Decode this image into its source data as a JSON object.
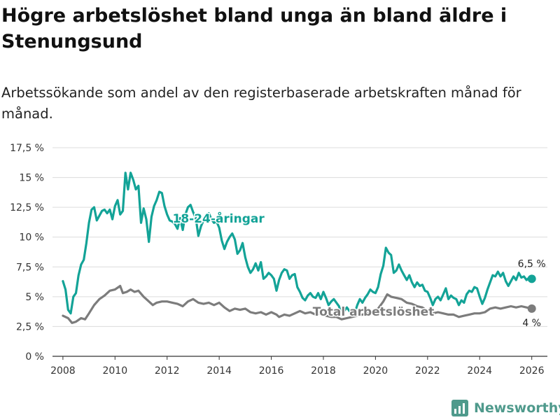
{
  "title": "Högre arbetslöshet bland unga än bland äldre i Stenungsund",
  "subtitle": "Arbetssökande som andel av den registerbaserade arbetskraften månad för månad.",
  "brand": {
    "name": "Newsworthy",
    "color": "#4f9a8c",
    "icon": "bar-chart-icon"
  },
  "chart_data": {
    "type": "line",
    "title": "Högre arbetslöshet bland unga än bland äldre i Stenungsund",
    "xlabel": "",
    "ylabel": "",
    "xlim": [
      2007.6,
      2026.6
    ],
    "ylim": [
      0,
      17.5
    ],
    "grid": true,
    "x_ticks": [
      2008,
      2010,
      2012,
      2014,
      2016,
      2018,
      2020,
      2022,
      2024,
      2026
    ],
    "x_tick_labels": [
      "2008",
      "2010",
      "2012",
      "2014",
      "2016",
      "2018",
      "2020",
      "2022",
      "2024",
      "2026"
    ],
    "y_ticks": [
      0,
      2.5,
      5,
      7.5,
      10,
      12.5,
      15,
      17.5
    ],
    "y_tick_labels": [
      "0 %",
      "2,5 %",
      "5 %",
      "7,5 %",
      "10 %",
      "12,5 %",
      "15 %",
      "17,5 %"
    ],
    "series": [
      {
        "name": "18-24-åringar",
        "color": "#13a397",
        "end_label": "6,5 %",
        "end_value": 6.5,
        "points": [
          [
            2008.0,
            6.3
          ],
          [
            2008.1,
            5.6
          ],
          [
            2008.2,
            3.9
          ],
          [
            2008.3,
            3.6
          ],
          [
            2008.4,
            5.0
          ],
          [
            2008.5,
            5.3
          ],
          [
            2008.6,
            6.8
          ],
          [
            2008.7,
            7.7
          ],
          [
            2008.8,
            8.1
          ],
          [
            2008.9,
            9.5
          ],
          [
            2009.0,
            11.2
          ],
          [
            2009.1,
            12.3
          ],
          [
            2009.2,
            12.5
          ],
          [
            2009.3,
            11.4
          ],
          [
            2009.4,
            11.8
          ],
          [
            2009.5,
            12.2
          ],
          [
            2009.6,
            12.3
          ],
          [
            2009.7,
            12.0
          ],
          [
            2009.8,
            12.3
          ],
          [
            2009.9,
            11.5
          ],
          [
            2010.0,
            12.6
          ],
          [
            2010.1,
            13.1
          ],
          [
            2010.2,
            11.9
          ],
          [
            2010.3,
            12.2
          ],
          [
            2010.4,
            15.4
          ],
          [
            2010.5,
            14.0
          ],
          [
            2010.6,
            15.4
          ],
          [
            2010.7,
            14.8
          ],
          [
            2010.8,
            14.0
          ],
          [
            2010.9,
            14.3
          ],
          [
            2011.0,
            11.2
          ],
          [
            2011.1,
            12.4
          ],
          [
            2011.2,
            11.5
          ],
          [
            2011.3,
            9.6
          ],
          [
            2011.4,
            11.7
          ],
          [
            2011.5,
            12.6
          ],
          [
            2011.6,
            13.1
          ],
          [
            2011.7,
            13.8
          ],
          [
            2011.8,
            13.7
          ],
          [
            2011.9,
            12.6
          ],
          [
            2012.0,
            11.9
          ],
          [
            2012.1,
            11.4
          ],
          [
            2012.2,
            11.3
          ],
          [
            2012.3,
            11.1
          ],
          [
            2012.4,
            10.7
          ],
          [
            2012.5,
            11.6
          ],
          [
            2012.6,
            10.6
          ],
          [
            2012.7,
            11.9
          ],
          [
            2012.8,
            12.5
          ],
          [
            2012.9,
            12.7
          ],
          [
            2013.0,
            12.1
          ],
          [
            2013.1,
            11.6
          ],
          [
            2013.2,
            10.1
          ],
          [
            2013.3,
            10.9
          ],
          [
            2013.4,
            11.4
          ],
          [
            2013.5,
            11.8
          ],
          [
            2013.6,
            12.0
          ],
          [
            2013.7,
            11.5
          ],
          [
            2013.8,
            11.2
          ],
          [
            2013.9,
            11.3
          ],
          [
            2014.0,
            10.8
          ],
          [
            2014.1,
            9.7
          ],
          [
            2014.2,
            9.0
          ],
          [
            2014.3,
            9.6
          ],
          [
            2014.4,
            10.0
          ],
          [
            2014.5,
            10.3
          ],
          [
            2014.6,
            9.8
          ],
          [
            2014.7,
            8.6
          ],
          [
            2014.8,
            8.9
          ],
          [
            2014.9,
            9.5
          ],
          [
            2015.0,
            8.3
          ],
          [
            2015.1,
            7.5
          ],
          [
            2015.2,
            7.0
          ],
          [
            2015.3,
            7.3
          ],
          [
            2015.4,
            7.8
          ],
          [
            2015.5,
            7.2
          ],
          [
            2015.6,
            7.9
          ],
          [
            2015.7,
            6.5
          ],
          [
            2015.8,
            6.7
          ],
          [
            2015.9,
            7.0
          ],
          [
            2016.0,
            6.8
          ],
          [
            2016.1,
            6.5
          ],
          [
            2016.2,
            5.5
          ],
          [
            2016.3,
            6.4
          ],
          [
            2016.4,
            7.0
          ],
          [
            2016.5,
            7.3
          ],
          [
            2016.6,
            7.2
          ],
          [
            2016.7,
            6.5
          ],
          [
            2016.8,
            6.8
          ],
          [
            2016.9,
            6.9
          ],
          [
            2017.0,
            5.8
          ],
          [
            2017.1,
            5.4
          ],
          [
            2017.2,
            4.9
          ],
          [
            2017.3,
            4.7
          ],
          [
            2017.4,
            5.1
          ],
          [
            2017.5,
            5.3
          ],
          [
            2017.6,
            5.0
          ],
          [
            2017.7,
            4.9
          ],
          [
            2017.8,
            5.3
          ],
          [
            2017.9,
            4.8
          ],
          [
            2018.0,
            5.4
          ],
          [
            2018.1,
            4.9
          ],
          [
            2018.2,
            4.3
          ],
          [
            2018.3,
            4.6
          ],
          [
            2018.4,
            4.8
          ],
          [
            2018.5,
            4.5
          ],
          [
            2018.6,
            4.2
          ],
          [
            2018.7,
            3.4
          ],
          [
            2018.8,
            3.8
          ],
          [
            2018.9,
            4.1
          ],
          [
            2019.0,
            3.8
          ],
          [
            2019.1,
            3.5
          ],
          [
            2019.2,
            3.6
          ],
          [
            2019.3,
            4.3
          ],
          [
            2019.4,
            4.8
          ],
          [
            2019.5,
            4.5
          ],
          [
            2019.6,
            4.9
          ],
          [
            2019.7,
            5.2
          ],
          [
            2019.8,
            5.6
          ],
          [
            2019.9,
            5.4
          ],
          [
            2020.0,
            5.3
          ],
          [
            2020.1,
            5.8
          ],
          [
            2020.2,
            6.9
          ],
          [
            2020.3,
            7.6
          ],
          [
            2020.4,
            9.1
          ],
          [
            2020.5,
            8.7
          ],
          [
            2020.6,
            8.5
          ],
          [
            2020.7,
            7.0
          ],
          [
            2020.8,
            7.2
          ],
          [
            2020.9,
            7.7
          ],
          [
            2021.0,
            7.2
          ],
          [
            2021.1,
            6.8
          ],
          [
            2021.2,
            6.4
          ],
          [
            2021.3,
            6.8
          ],
          [
            2021.4,
            6.2
          ],
          [
            2021.5,
            5.8
          ],
          [
            2021.6,
            6.2
          ],
          [
            2021.7,
            5.9
          ],
          [
            2021.8,
            6.0
          ],
          [
            2021.9,
            5.5
          ],
          [
            2022.0,
            5.4
          ],
          [
            2022.1,
            4.9
          ],
          [
            2022.2,
            4.3
          ],
          [
            2022.3,
            4.8
          ],
          [
            2022.4,
            5.0
          ],
          [
            2022.5,
            4.7
          ],
          [
            2022.6,
            5.2
          ],
          [
            2022.7,
            5.7
          ],
          [
            2022.8,
            4.8
          ],
          [
            2022.9,
            5.1
          ],
          [
            2023.0,
            4.9
          ],
          [
            2023.1,
            4.8
          ],
          [
            2023.2,
            4.3
          ],
          [
            2023.3,
            4.7
          ],
          [
            2023.4,
            4.5
          ],
          [
            2023.5,
            5.2
          ],
          [
            2023.6,
            5.5
          ],
          [
            2023.7,
            5.4
          ],
          [
            2023.8,
            5.8
          ],
          [
            2023.9,
            5.7
          ],
          [
            2024.0,
            5.0
          ],
          [
            2024.1,
            4.4
          ],
          [
            2024.2,
            4.9
          ],
          [
            2024.3,
            5.6
          ],
          [
            2024.4,
            6.2
          ],
          [
            2024.5,
            6.8
          ],
          [
            2024.6,
            6.7
          ],
          [
            2024.7,
            7.1
          ],
          [
            2024.8,
            6.7
          ],
          [
            2024.9,
            7.0
          ],
          [
            2025.0,
            6.3
          ],
          [
            2025.1,
            5.9
          ],
          [
            2025.2,
            6.3
          ],
          [
            2025.3,
            6.7
          ],
          [
            2025.4,
            6.4
          ],
          [
            2025.5,
            7.0
          ],
          [
            2025.6,
            6.6
          ],
          [
            2025.7,
            6.7
          ],
          [
            2025.8,
            6.4
          ],
          [
            2025.9,
            6.6
          ],
          [
            2026.0,
            6.5
          ]
        ]
      },
      {
        "name": "Total arbetslöshet",
        "color": "#7c7c7c",
        "end_label": "4 %",
        "end_value": 4.0,
        "points": [
          [
            2008.0,
            3.4
          ],
          [
            2008.2,
            3.2
          ],
          [
            2008.35,
            2.8
          ],
          [
            2008.5,
            2.9
          ],
          [
            2008.7,
            3.2
          ],
          [
            2008.85,
            3.1
          ],
          [
            2009.0,
            3.6
          ],
          [
            2009.2,
            4.3
          ],
          [
            2009.4,
            4.8
          ],
          [
            2009.6,
            5.1
          ],
          [
            2009.8,
            5.5
          ],
          [
            2010.0,
            5.6
          ],
          [
            2010.2,
            5.9
          ],
          [
            2010.3,
            5.3
          ],
          [
            2010.45,
            5.4
          ],
          [
            2010.6,
            5.6
          ],
          [
            2010.75,
            5.4
          ],
          [
            2010.9,
            5.5
          ],
          [
            2011.1,
            5.0
          ],
          [
            2011.3,
            4.6
          ],
          [
            2011.45,
            4.3
          ],
          [
            2011.6,
            4.5
          ],
          [
            2011.8,
            4.6
          ],
          [
            2012.0,
            4.6
          ],
          [
            2012.2,
            4.5
          ],
          [
            2012.4,
            4.4
          ],
          [
            2012.6,
            4.2
          ],
          [
            2012.8,
            4.6
          ],
          [
            2013.0,
            4.8
          ],
          [
            2013.2,
            4.5
          ],
          [
            2013.4,
            4.4
          ],
          [
            2013.6,
            4.5
          ],
          [
            2013.8,
            4.3
          ],
          [
            2014.0,
            4.5
          ],
          [
            2014.2,
            4.1
          ],
          [
            2014.4,
            3.8
          ],
          [
            2014.6,
            4.0
          ],
          [
            2014.8,
            3.9
          ],
          [
            2015.0,
            4.0
          ],
          [
            2015.2,
            3.7
          ],
          [
            2015.4,
            3.6
          ],
          [
            2015.6,
            3.7
          ],
          [
            2015.8,
            3.5
          ],
          [
            2016.0,
            3.7
          ],
          [
            2016.2,
            3.5
          ],
          [
            2016.3,
            3.3
          ],
          [
            2016.5,
            3.5
          ],
          [
            2016.7,
            3.4
          ],
          [
            2016.9,
            3.6
          ],
          [
            2017.1,
            3.8
          ],
          [
            2017.3,
            3.6
          ],
          [
            2017.5,
            3.7
          ],
          [
            2017.7,
            3.5
          ],
          [
            2017.9,
            3.6
          ],
          [
            2018.1,
            3.4
          ],
          [
            2018.3,
            3.3
          ],
          [
            2018.5,
            3.3
          ],
          [
            2018.7,
            3.1
          ],
          [
            2018.9,
            3.2
          ],
          [
            2019.1,
            3.3
          ],
          [
            2019.3,
            3.4
          ],
          [
            2019.5,
            3.5
          ],
          [
            2019.7,
            3.6
          ],
          [
            2019.9,
            3.7
          ],
          [
            2020.1,
            4.0
          ],
          [
            2020.3,
            4.6
          ],
          [
            2020.45,
            5.2
          ],
          [
            2020.6,
            5.0
          ],
          [
            2020.8,
            4.9
          ],
          [
            2021.0,
            4.8
          ],
          [
            2021.2,
            4.5
          ],
          [
            2021.4,
            4.4
          ],
          [
            2021.6,
            4.2
          ],
          [
            2021.8,
            4.1
          ],
          [
            2022.0,
            3.8
          ],
          [
            2022.2,
            3.6
          ],
          [
            2022.4,
            3.7
          ],
          [
            2022.6,
            3.6
          ],
          [
            2022.8,
            3.5
          ],
          [
            2023.0,
            3.5
          ],
          [
            2023.2,
            3.3
          ],
          [
            2023.4,
            3.4
          ],
          [
            2023.6,
            3.5
          ],
          [
            2023.8,
            3.6
          ],
          [
            2024.0,
            3.6
          ],
          [
            2024.2,
            3.7
          ],
          [
            2024.4,
            4.0
          ],
          [
            2024.6,
            4.1
          ],
          [
            2024.8,
            4.0
          ],
          [
            2025.0,
            4.1
          ],
          [
            2025.2,
            4.2
          ],
          [
            2025.4,
            4.1
          ],
          [
            2025.6,
            4.2
          ],
          [
            2025.8,
            4.1
          ],
          [
            2026.0,
            4.0
          ]
        ]
      }
    ]
  }
}
